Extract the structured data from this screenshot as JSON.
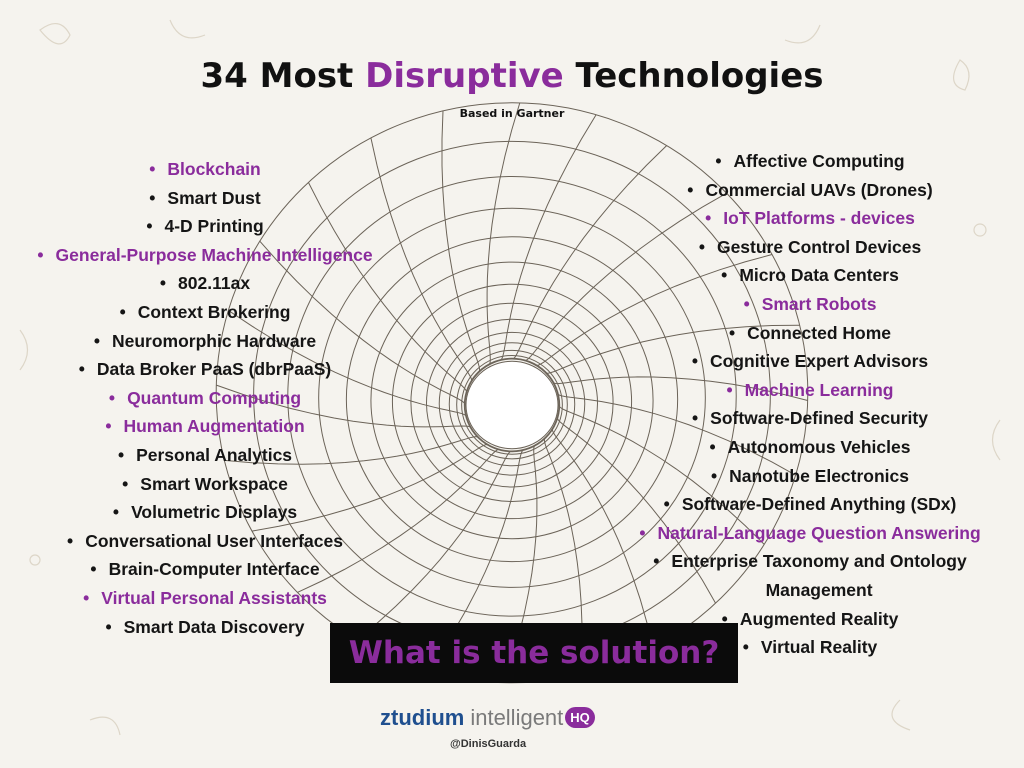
{
  "title": {
    "pre": "34 Most ",
    "highlight": "Disruptive",
    "post": " Technologies"
  },
  "subtitle": "Based in Gartner",
  "bullet": "•",
  "left_list": [
    {
      "text": "Blockchain",
      "highlight": true
    },
    {
      "text": "Smart Dust",
      "highlight": false
    },
    {
      "text": "4-D Printing",
      "highlight": false
    },
    {
      "text": "General-Purpose Machine Intelligence",
      "highlight": true
    },
    {
      "text": "802.11ax",
      "highlight": false
    },
    {
      "text": "Context Brokering",
      "highlight": false
    },
    {
      "text": "Neuromorphic Hardware",
      "highlight": false
    },
    {
      "text": "Data Broker PaaS (dbrPaaS)",
      "highlight": false
    },
    {
      "text": "Quantum Computing",
      "highlight": true
    },
    {
      "text": "Human Augmentation",
      "highlight": true
    },
    {
      "text": "Personal Analytics",
      "highlight": false
    },
    {
      "text": "Smart Workspace",
      "highlight": false
    },
    {
      "text": "Volumetric Displays",
      "highlight": false
    },
    {
      "text": "Conversational User Interfaces",
      "highlight": false
    },
    {
      "text": "Brain-Computer Interface",
      "highlight": false
    },
    {
      "text": "Virtual Personal Assistants",
      "highlight": true
    },
    {
      "text": "Smart Data Discovery",
      "highlight": false
    }
  ],
  "right_list": [
    {
      "text": "Affective Computing",
      "highlight": false
    },
    {
      "text": "Commercial UAVs (Drones)",
      "highlight": false
    },
    {
      "text": "IoT Platforms - devices",
      "highlight": true
    },
    {
      "text": "Gesture Control Devices",
      "highlight": false
    },
    {
      "text": "Micro Data Centers",
      "highlight": false
    },
    {
      "text": "Smart Robots",
      "highlight": true
    },
    {
      "text": "Connected Home",
      "highlight": false
    },
    {
      "text": "Cognitive Expert Advisors",
      "highlight": false
    },
    {
      "text": "Machine Learning",
      "highlight": true
    },
    {
      "text": "Software-Defined Security",
      "highlight": false
    },
    {
      "text": "Autonomous Vehicles",
      "highlight": false
    },
    {
      "text": "Nanotube Electronics",
      "highlight": false
    },
    {
      "text": "Software-Defined Anything (SDx)",
      "highlight": false
    },
    {
      "text": "Natural-Language Question Answering",
      "highlight": true
    },
    {
      "text": "Enterprise Taxonomy and Ontology",
      "highlight": false
    },
    {
      "text": "Management",
      "highlight": false,
      "continuation": true
    },
    {
      "text": "Augmented Reality",
      "highlight": false
    },
    {
      "text": "Virtual Reality",
      "highlight": false
    }
  ],
  "solution_text": "What is the solution?",
  "logo": {
    "brand": "ztudium",
    "product": "intelligent",
    "badge": "HQ"
  },
  "handle": "@DinisGuarda",
  "colors": {
    "highlight": "#8a2c9c",
    "text": "#151515",
    "solution_bg": "#0b0b0b",
    "tunnel_line": "#6b6358"
  },
  "icons": {
    "center_graphic": "wormhole-tunnel-icon",
    "background": "floral-pattern"
  }
}
